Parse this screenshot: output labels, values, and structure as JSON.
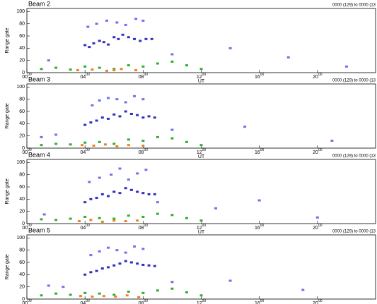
{
  "chart_data": [
    {
      "type": "scatter",
      "title": "Beam 2",
      "subtitle": "0000 (129) to 0000 (13",
      "xlabel": "UT",
      "ylabel": "Range gate",
      "xlim": [
        0,
        24
      ],
      "ylim": [
        0,
        105
      ],
      "yticks": [
        0,
        20,
        40,
        60,
        80,
        100
      ],
      "xticks": [
        {
          "value": 0,
          "label": "00",
          "sup": "00"
        },
        {
          "value": 4,
          "label": "04",
          "sup": "00"
        },
        {
          "value": 8,
          "label": "08",
          "sup": "00"
        },
        {
          "value": 12,
          "label": "12",
          "sup": "00"
        },
        {
          "value": 16,
          "label": "16",
          "sup": "00"
        },
        {
          "value": 20,
          "label": "20",
          "sup": "00"
        }
      ],
      "series": [
        {
          "color": "#3030c0",
          "x": [
            4.0,
            4.3,
            4.6,
            5.0,
            5.3,
            5.6,
            6.0,
            6.3,
            6.6,
            7.0,
            7.4,
            7.8,
            8.2,
            8.6
          ],
          "values": [
            45,
            42,
            48,
            52,
            50,
            46,
            58,
            55,
            62,
            58,
            55,
            52,
            55,
            55
          ]
        },
        {
          "color": "#7070f0",
          "x": [
            4.2,
            4.8,
            5.5,
            6.2,
            6.8,
            7.5,
            8.0,
            1.5,
            10,
            14,
            18,
            22
          ],
          "values": [
            75,
            80,
            85,
            82,
            78,
            88,
            85,
            20,
            30,
            40,
            25,
            10
          ]
        },
        {
          "color": "#30b030",
          "x": [
            1,
            2,
            3,
            4,
            5,
            6,
            7,
            8,
            9,
            10,
            11,
            12
          ],
          "values": [
            6,
            8,
            5,
            10,
            8,
            6,
            12,
            10,
            15,
            18,
            12,
            6
          ]
        },
        {
          "color": "#f08020",
          "x": [
            3.5,
            4.5,
            5.5,
            6.0,
            6.5,
            7.5
          ],
          "values": [
            4,
            5,
            3,
            4,
            6,
            4
          ]
        }
      ]
    },
    {
      "type": "scatter",
      "title": "Beam 3",
      "subtitle": "0000 (129) to 0000 (13",
      "xlabel": "UT",
      "ylabel": "Range gate",
      "xlim": [
        0,
        24
      ],
      "ylim": [
        0,
        105
      ],
      "yticks": [
        0,
        20,
        40,
        60,
        80,
        100
      ],
      "xticks": [
        {
          "value": 0,
          "label": "00",
          "sup": "00"
        },
        {
          "value": 4,
          "label": "04",
          "sup": "00"
        },
        {
          "value": 8,
          "label": "08",
          "sup": "00"
        },
        {
          "value": 12,
          "label": "12",
          "sup": "00"
        },
        {
          "value": 16,
          "label": "16",
          "sup": "00"
        },
        {
          "value": 20,
          "label": "20",
          "sup": "00"
        }
      ],
      "series": [
        {
          "color": "#3030c0",
          "x": [
            4.0,
            4.4,
            4.8,
            5.2,
            5.6,
            6.0,
            6.4,
            6.8,
            7.2,
            7.6,
            8.0,
            8.4,
            8.8
          ],
          "values": [
            38,
            42,
            45,
            50,
            48,
            55,
            52,
            60,
            56,
            54,
            50,
            52,
            50
          ]
        },
        {
          "color": "#7070f0",
          "x": [
            4.5,
            5.0,
            5.6,
            6.2,
            6.8,
            7.4,
            8.0,
            1.0,
            2.0,
            10,
            15,
            21
          ],
          "values": [
            70,
            78,
            82,
            80,
            75,
            85,
            80,
            18,
            22,
            30,
            35,
            12
          ]
        },
        {
          "color": "#30b030",
          "x": [
            1,
            2,
            3,
            4,
            5,
            6,
            7,
            8,
            9,
            10,
            11,
            12
          ],
          "values": [
            5,
            7,
            6,
            9,
            10,
            7,
            14,
            12,
            18,
            16,
            10,
            5
          ]
        },
        {
          "color": "#f08020",
          "x": [
            3.8,
            4.6,
            5.4,
            6.2,
            7.0,
            8.0
          ],
          "values": [
            5,
            4,
            6,
            3,
            5,
            4
          ]
        }
      ]
    },
    {
      "type": "scatter",
      "title": "Beam 4",
      "subtitle": "0000 (129) to 0000 (13",
      "xlabel": "UT",
      "ylabel": "Range gate",
      "xlim": [
        0,
        24
      ],
      "ylim": [
        0,
        105
      ],
      "yticks": [
        0,
        20,
        40,
        60,
        80,
        100
      ],
      "xticks": [
        {
          "value": 0,
          "label": "00",
          "sup": "00"
        },
        {
          "value": 4,
          "label": "04",
          "sup": "00"
        },
        {
          "value": 8,
          "label": "08",
          "sup": "00"
        },
        {
          "value": 12,
          "label": "12",
          "sup": "00"
        },
        {
          "value": 16,
          "label": "16",
          "sup": "00"
        },
        {
          "value": 20,
          "label": "20",
          "sup": "00"
        }
      ],
      "series": [
        {
          "color": "#3030c0",
          "x": [
            4.0,
            4.4,
            4.8,
            5.2,
            5.6,
            6.0,
            6.4,
            6.8,
            7.2,
            7.6,
            8.0,
            8.4,
            8.8
          ],
          "values": [
            35,
            40,
            42,
            48,
            45,
            52,
            50,
            58,
            55,
            52,
            50,
            48,
            48
          ]
        },
        {
          "color": "#7070f0",
          "x": [
            4.3,
            5.0,
            5.8,
            6.4,
            7.0,
            7.6,
            8.2,
            1.2,
            9,
            13,
            16,
            20
          ],
          "values": [
            68,
            75,
            80,
            90,
            72,
            82,
            88,
            15,
            35,
            25,
            38,
            10
          ]
        },
        {
          "color": "#30b030",
          "x": [
            1,
            2,
            3,
            4,
            5,
            6,
            7,
            8,
            9,
            10,
            11,
            12
          ],
          "values": [
            7,
            6,
            8,
            11,
            9,
            8,
            13,
            11,
            16,
            14,
            9,
            5
          ]
        },
        {
          "color": "#f08020",
          "x": [
            3.6,
            4.4,
            5.2,
            6.0,
            6.8,
            7.6
          ],
          "values": [
            4,
            6,
            3,
            5,
            4,
            5
          ]
        }
      ]
    },
    {
      "type": "scatter",
      "title": "Beam 5",
      "subtitle": "0000 (129) to 0000 (13",
      "xlabel": "UT",
      "ylabel": "Range gate",
      "xlim": [
        0,
        24
      ],
      "ylim": [
        0,
        105
      ],
      "yticks": [
        0,
        20,
        40,
        60,
        80,
        100
      ],
      "xticks": [
        {
          "value": 0,
          "label": "00",
          "sup": "00"
        },
        {
          "value": 4,
          "label": "04",
          "sup": "00"
        },
        {
          "value": 8,
          "label": "08",
          "sup": "00"
        },
        {
          "value": 12,
          "label": "12",
          "sup": "00"
        },
        {
          "value": 16,
          "label": "16",
          "sup": "00"
        },
        {
          "value": 20,
          "label": "20",
          "sup": "00"
        }
      ],
      "series": [
        {
          "color": "#3030c0",
          "x": [
            4.0,
            4.4,
            4.8,
            5.2,
            5.6,
            6.0,
            6.4,
            6.8,
            7.2,
            7.6,
            8.0,
            8.4,
            8.8
          ],
          "values": [
            40,
            44,
            46,
            50,
            52,
            55,
            58,
            62,
            60,
            58,
            56,
            55,
            54
          ]
        },
        {
          "color": "#7070f0",
          "x": [
            4.4,
            5.0,
            5.6,
            6.2,
            6.8,
            7.4,
            8.0,
            1.5,
            2.5,
            10,
            14,
            19
          ],
          "values": [
            72,
            78,
            84,
            80,
            76,
            86,
            82,
            22,
            20,
            28,
            30,
            15
          ]
        },
        {
          "color": "#30b030",
          "x": [
            1,
            2,
            3,
            4,
            5,
            6,
            7,
            8,
            9,
            10,
            11,
            12
          ],
          "values": [
            6,
            9,
            7,
            10,
            9,
            7,
            12,
            10,
            14,
            17,
            11,
            6
          ]
        },
        {
          "color": "#f08020",
          "x": [
            3.7,
            4.5,
            5.3,
            6.1,
            6.9,
            7.7
          ],
          "values": [
            5,
            4,
            5,
            4,
            6,
            3
          ]
        }
      ]
    }
  ]
}
